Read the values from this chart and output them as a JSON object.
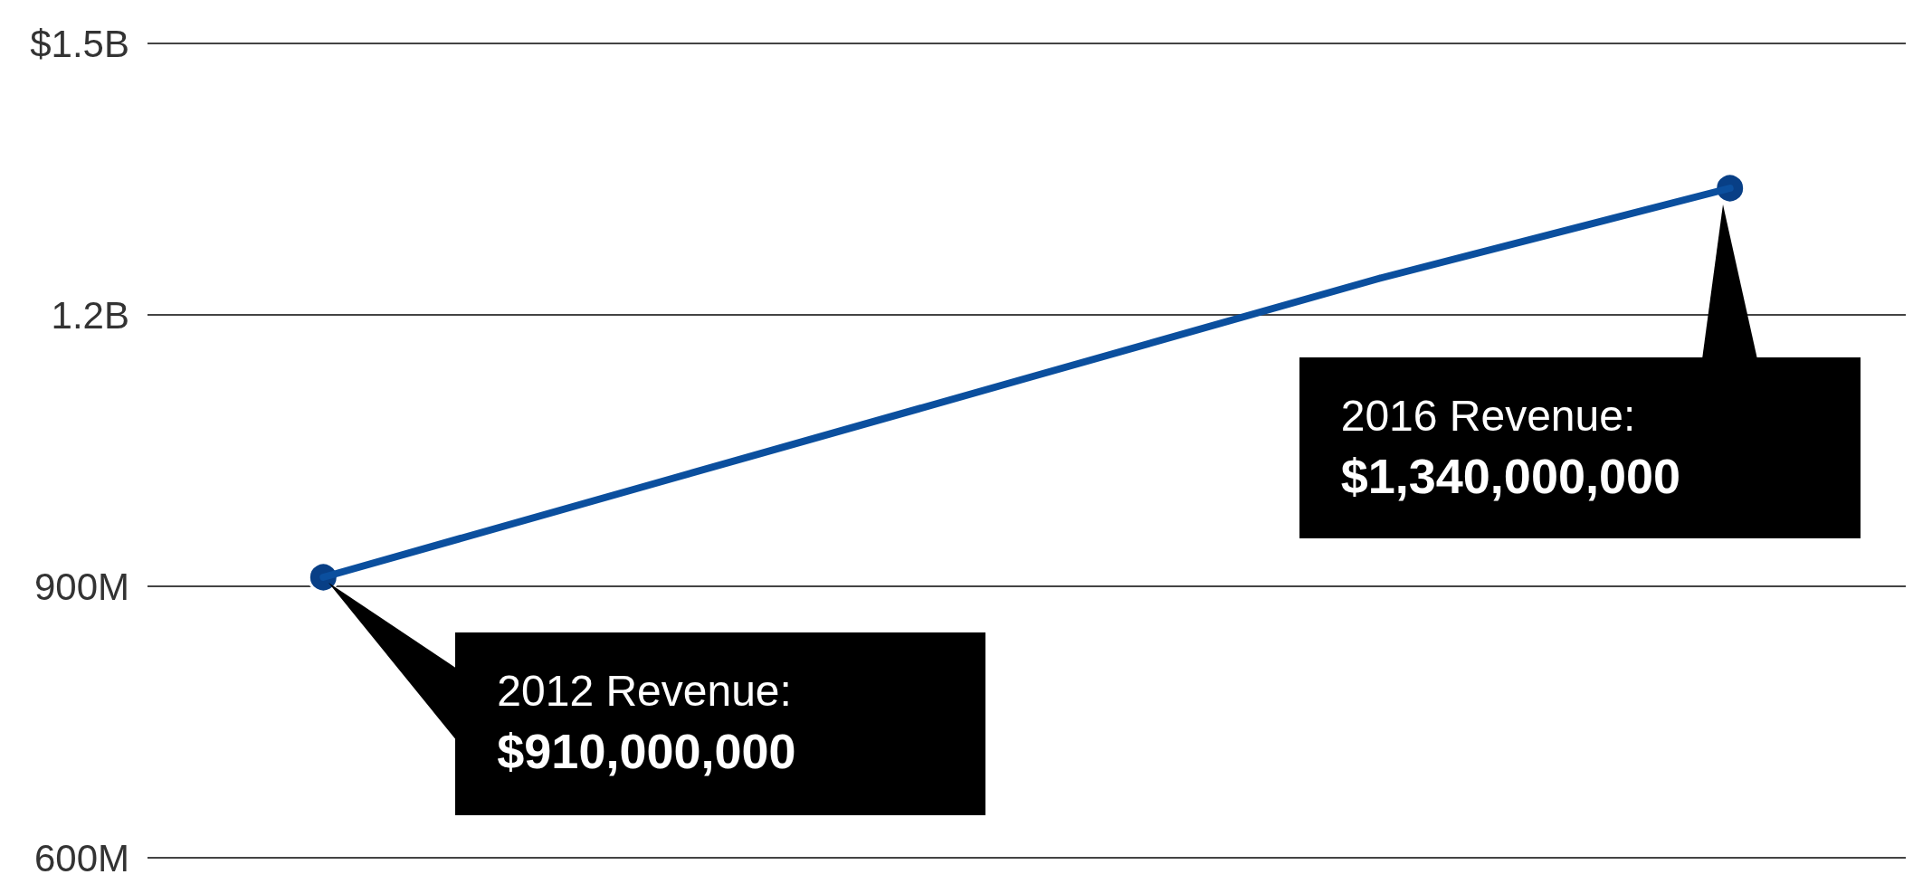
{
  "chart_data": {
    "type": "line",
    "categories": [
      null,
      null,
      null,
      null,
      null
    ],
    "tick_labels": "y",
    "series": [
      {
        "color": "#0b4f9e",
        "marker": "none",
        "values": [
          910000000,
          1020000000,
          1130000000,
          1240000000,
          1340000000
        ]
      },
      {
        "type": "scatter",
        "color": "#083f86",
        "marker": "circle",
        "values": [
          910000000,
          null,
          null,
          null,
          1340000000
        ]
      }
    ],
    "ylim": [
      600000000,
      1500000000
    ],
    "yticks": [
      {
        "value": 600000000,
        "label": "600M"
      },
      {
        "value": 900000000,
        "label": "900M"
      },
      {
        "value": 1200000000,
        "label": "1.2B"
      },
      {
        "value": 1500000000,
        "label": "$1.5B"
      }
    ],
    "grid": "y",
    "line_style": "solid",
    "annotations": [
      "2012 Revenue:\n$910,000,000",
      "2016 Revenue:\n$1,340,000,000"
    ]
  }
}
